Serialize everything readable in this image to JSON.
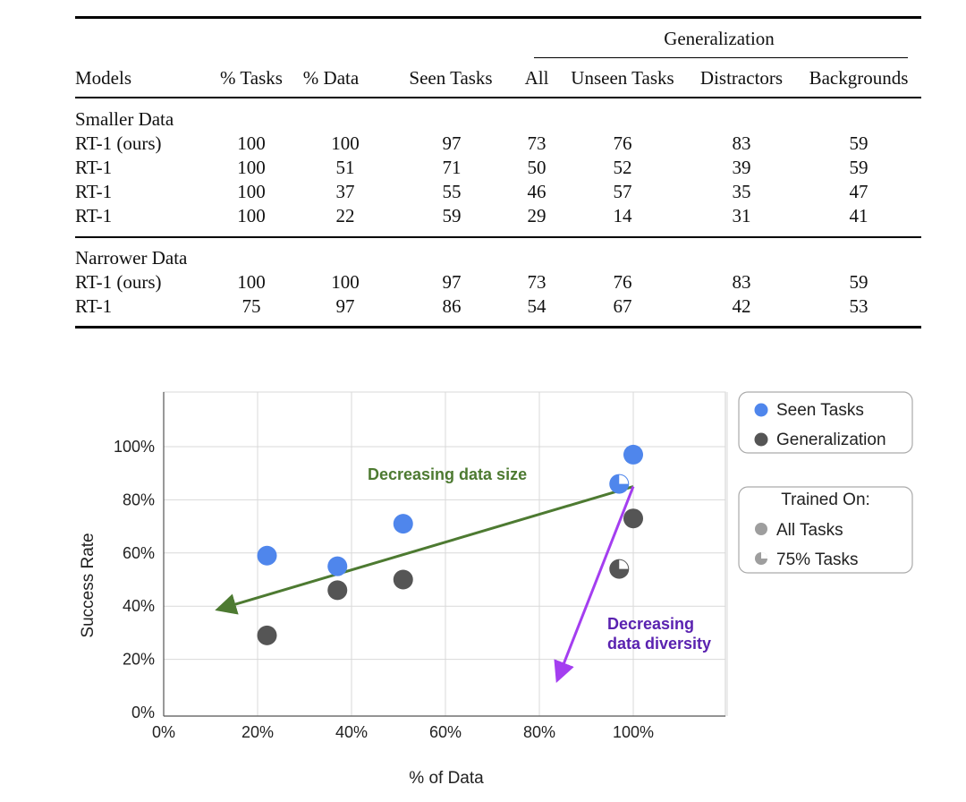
{
  "table": {
    "group_header": "Generalization",
    "columns": [
      "Models",
      "% Tasks",
      "% Data",
      "Seen Tasks",
      "All",
      "Unseen Tasks",
      "Distractors",
      "Backgrounds"
    ],
    "sections": [
      {
        "title": "Smaller Data",
        "rows": [
          [
            "RT-1 (ours)",
            "100",
            "100",
            "97",
            "73",
            "76",
            "83",
            "59"
          ],
          [
            "RT-1",
            "100",
            "51",
            "71",
            "50",
            "52",
            "39",
            "59"
          ],
          [
            "RT-1",
            "100",
            "37",
            "55",
            "46",
            "57",
            "35",
            "47"
          ],
          [
            "RT-1",
            "100",
            "22",
            "59",
            "29",
            "14",
            "31",
            "41"
          ]
        ]
      },
      {
        "title": "Narrower Data",
        "rows": [
          [
            "RT-1 (ours)",
            "100",
            "100",
            "97",
            "73",
            "76",
            "83",
            "59"
          ],
          [
            "RT-1",
            "75",
            "97",
            "86",
            "54",
            "67",
            "42",
            "53"
          ]
        ]
      }
    ]
  },
  "chart_data": {
    "type": "scatter",
    "xlabel": "% of Data",
    "ylabel": "Success Rate",
    "xlim": [
      0,
      100
    ],
    "ylim": [
      0,
      100
    ],
    "x_ticks": [
      "0%",
      "20%",
      "40%",
      "60%",
      "80%",
      "100%"
    ],
    "y_ticks": [
      "0%",
      "20%",
      "40%",
      "60%",
      "80%",
      "100%"
    ],
    "series": [
      {
        "name": "Seen Tasks",
        "color": "#4f86ec",
        "points": [
          {
            "x": 100,
            "y": 97,
            "trained_on": "All Tasks"
          },
          {
            "x": 51,
            "y": 71,
            "trained_on": "All Tasks"
          },
          {
            "x": 37,
            "y": 55,
            "trained_on": "All Tasks"
          },
          {
            "x": 22,
            "y": 59,
            "trained_on": "All Tasks"
          },
          {
            "x": 97,
            "y": 86,
            "trained_on": "75% Tasks"
          }
        ]
      },
      {
        "name": "Generalization",
        "color": "#555555",
        "points": [
          {
            "x": 100,
            "y": 73,
            "trained_on": "All Tasks"
          },
          {
            "x": 51,
            "y": 50,
            "trained_on": "All Tasks"
          },
          {
            "x": 37,
            "y": 46,
            "trained_on": "All Tasks"
          },
          {
            "x": 22,
            "y": 29,
            "trained_on": "All Tasks"
          },
          {
            "x": 97,
            "y": 54,
            "trained_on": "75% Tasks"
          }
        ]
      }
    ],
    "legend": {
      "series": [
        "Seen Tasks",
        "Generalization"
      ],
      "trained_on_title": "Trained On:",
      "trained_on": [
        "All Tasks",
        "75% Tasks"
      ],
      "placement": "right"
    },
    "annotations": [
      {
        "text": "Decreasing data size",
        "color": "#4d7a31",
        "from": {
          "x": 100,
          "y": 85
        },
        "to": {
          "x": 12,
          "y": 39
        }
      },
      {
        "text": "Decreasing data diversity",
        "lines": [
          "Decreasing",
          "data diversity"
        ],
        "color": "#5a22b0",
        "arrow_color": "#a43ef0",
        "from": {
          "x": 100,
          "y": 85
        },
        "to": {
          "x": 84,
          "y": 13
        }
      }
    ],
    "grid": true
  }
}
